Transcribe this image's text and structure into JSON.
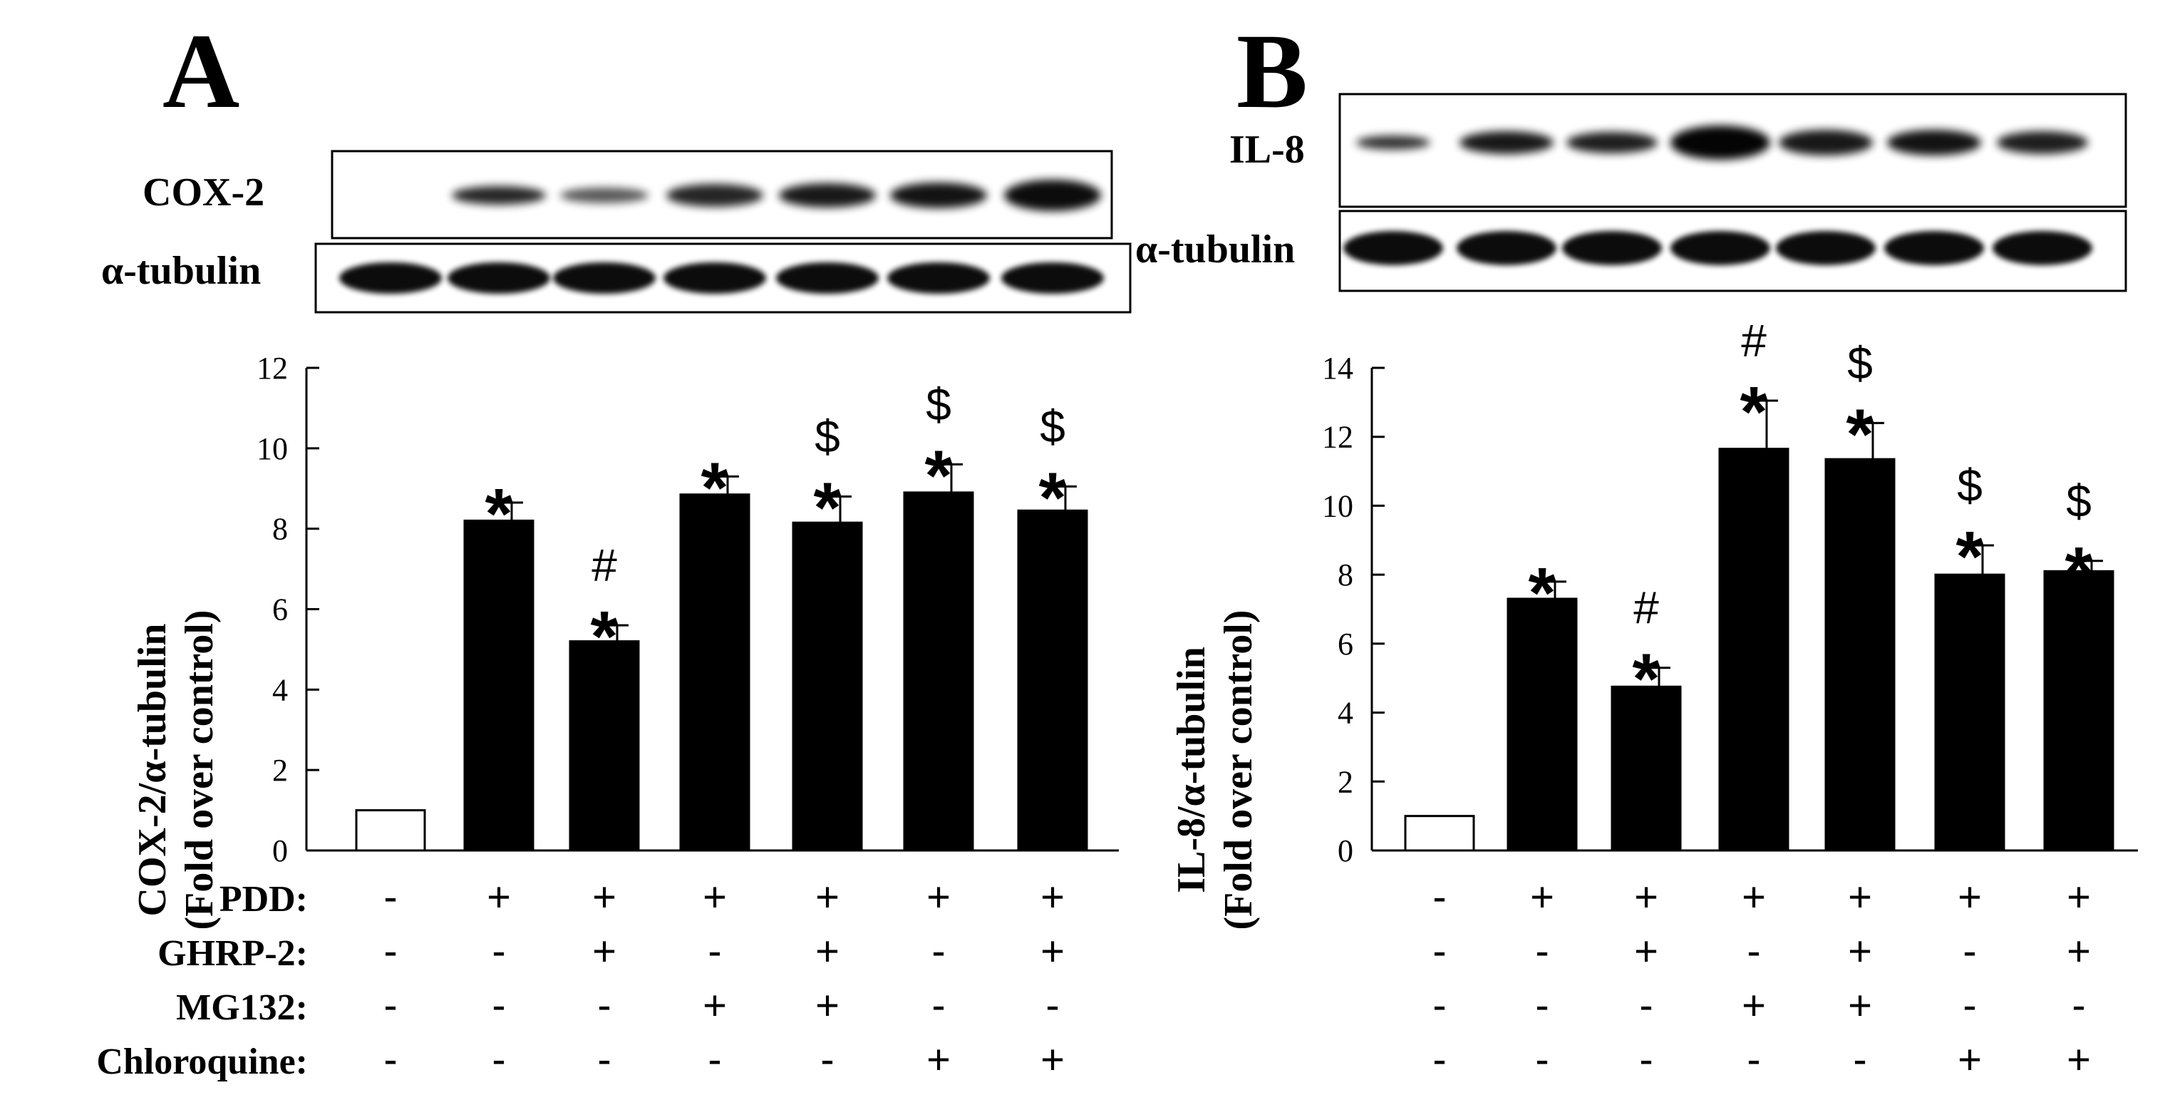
{
  "panels": [
    {
      "letter": "A",
      "blot": {
        "target_label": "COX-2",
        "loading_label": "α-tubulin"
      },
      "conditions": [
        {
          "label": "PDD:",
          "values": [
            "-",
            "+",
            "+",
            "+",
            "+",
            "+",
            "+"
          ]
        },
        {
          "label": "GHRP-2:",
          "values": [
            "-",
            "-",
            "+",
            "-",
            "+",
            "-",
            "+"
          ]
        },
        {
          "label": "MG132:",
          "values": [
            "-",
            "-",
            "-",
            "+",
            "+",
            "-",
            "-"
          ]
        },
        {
          "label": "Chloroquine:",
          "values": [
            "-",
            "-",
            "-",
            "-",
            "-",
            "+",
            "+"
          ]
        }
      ]
    },
    {
      "letter": "B",
      "blot": {
        "target_label": "IL-8",
        "loading_label": "α-tubulin"
      },
      "conditions": [
        {
          "label": "",
          "values": [
            "-",
            "+",
            "+",
            "+",
            "+",
            "+",
            "+"
          ]
        },
        {
          "label": "",
          "values": [
            "-",
            "-",
            "+",
            "-",
            "+",
            "-",
            "+"
          ]
        },
        {
          "label": "",
          "values": [
            "-",
            "-",
            "-",
            "+",
            "+",
            "-",
            "-"
          ]
        },
        {
          "label": "",
          "values": [
            "-",
            "-",
            "-",
            "-",
            "-",
            "+",
            "+"
          ]
        }
      ]
    }
  ],
  "colors": {
    "control_bar": "#ffffff",
    "treatment_bar": "#000000",
    "stroke": "#000000"
  },
  "chart_data": [
    {
      "type": "bar",
      "panel": "A",
      "title": "",
      "xlabel": "",
      "ylabel": "COX-2/α-tubulin (Fold over control)",
      "ylabel_lines": [
        "COX-2/α-tubulin",
        "(Fold over control)"
      ],
      "ylim": [
        0,
        12
      ],
      "yticks": [
        0,
        2,
        4,
        6,
        8,
        10,
        12
      ],
      "grid": false,
      "values": [
        1.0,
        8.2,
        5.2,
        8.85,
        8.15,
        8.9,
        8.45
      ],
      "errors": [
        0,
        0.45,
        0.4,
        0.45,
        0.65,
        0.7,
        0.6
      ],
      "bar_fill": [
        "white",
        "black",
        "black",
        "black",
        "black",
        "black",
        "black"
      ],
      "annotations": [
        [],
        [
          "*"
        ],
        [
          "*",
          "#"
        ],
        [
          "*"
        ],
        [
          "*",
          "$"
        ],
        [
          "*",
          "$"
        ],
        [
          "*",
          "$"
        ]
      ]
    },
    {
      "type": "bar",
      "panel": "B",
      "title": "",
      "xlabel": "",
      "ylabel": "IL-8/α-tubulin (Fold over control)",
      "ylabel_lines": [
        "IL-8/α-tubulin",
        "(Fold over control)"
      ],
      "ylim": [
        0,
        14
      ],
      "yticks": [
        0,
        2,
        4,
        6,
        8,
        10,
        12,
        14
      ],
      "grid": false,
      "values": [
        1.0,
        7.3,
        4.75,
        11.65,
        11.35,
        8.0,
        8.1
      ],
      "errors": [
        0,
        0.5,
        0.55,
        1.4,
        1.05,
        0.85,
        0.3
      ],
      "bar_fill": [
        "white",
        "black",
        "black",
        "black",
        "black",
        "black",
        "black"
      ],
      "annotations": [
        [],
        [
          "*"
        ],
        [
          "*",
          "#"
        ],
        [
          "*",
          "#"
        ],
        [
          "*",
          "$"
        ],
        [
          "*",
          "$"
        ],
        [
          "*",
          "$"
        ]
      ]
    }
  ]
}
